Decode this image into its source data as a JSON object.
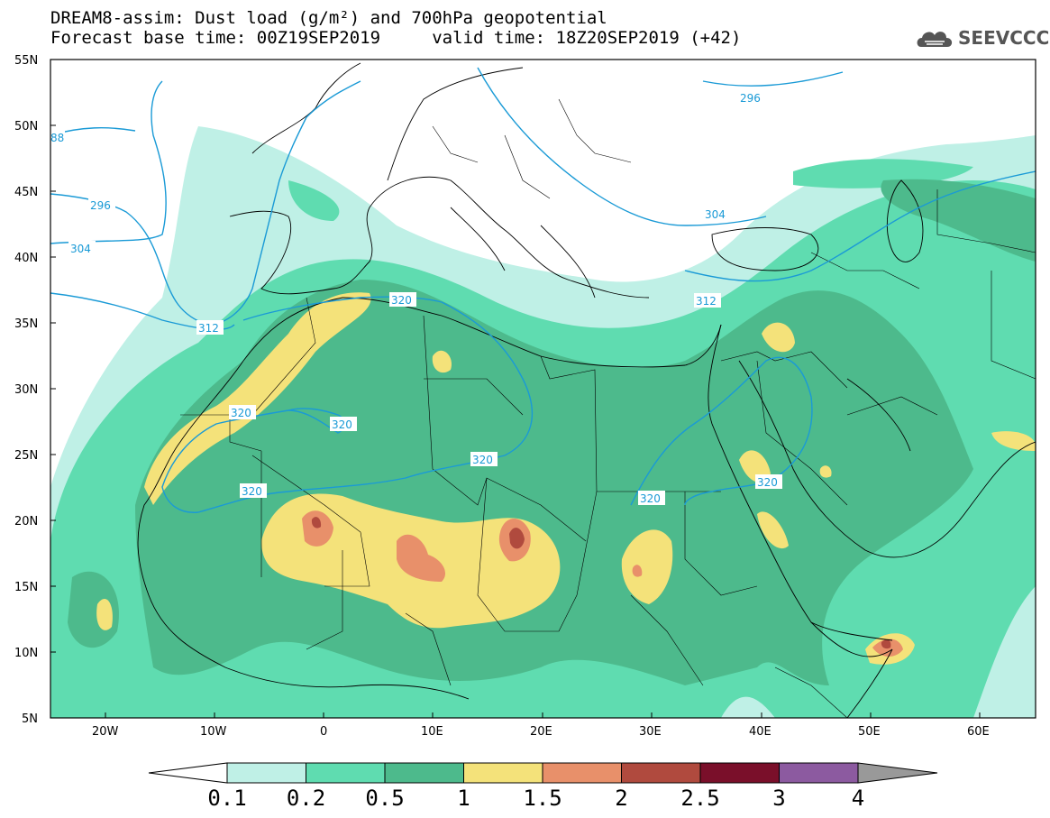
{
  "header": {
    "title_line1": "DREAM8-assim: Dust load (g/m²) and 700hPa geopotential",
    "title_line2": "Forecast base time: 00Z19SEP2019     valid time: 18Z20SEP2019 (+42)",
    "logo_text": "SEEVCCC",
    "logo_icon": "cloud-logo-icon"
  },
  "map": {
    "lat_labels": [
      "55N",
      "50N",
      "45N",
      "40N",
      "35N",
      "30N",
      "25N",
      "20N",
      "15N",
      "10N",
      "5N"
    ],
    "lon_labels": [
      "20W",
      "10W",
      "0",
      "10E",
      "20E",
      "30E",
      "40E",
      "50E",
      "60E"
    ],
    "contour_color": "#1a9ad6",
    "contour_labels": [
      "296",
      "296",
      "304",
      "304",
      "312",
      "320",
      "320",
      "320",
      "320",
      "320",
      "320",
      "320",
      "312",
      "88"
    ],
    "fill_colors": {
      "c01": "#bff0e6",
      "c02": "#5fdcb0",
      "c05": "#4dba8c",
      "c1": "#f4e27a",
      "c15": "#e8906a",
      "c2": "#b04a3e",
      "c25": "#7a0f2a",
      "c3": "#8c5aa0",
      "c4": "#999999"
    }
  },
  "colorbar": {
    "labels": [
      "0.1",
      "0.2",
      "0.5",
      "1",
      "1.5",
      "2",
      "2.5",
      "3",
      "4"
    ],
    "colors": [
      "#bff0e6",
      "#5fdcb0",
      "#4dba8c",
      "#f4e27a",
      "#e8906a",
      "#b04a3e",
      "#7a0f2a",
      "#8c5aa0"
    ]
  }
}
